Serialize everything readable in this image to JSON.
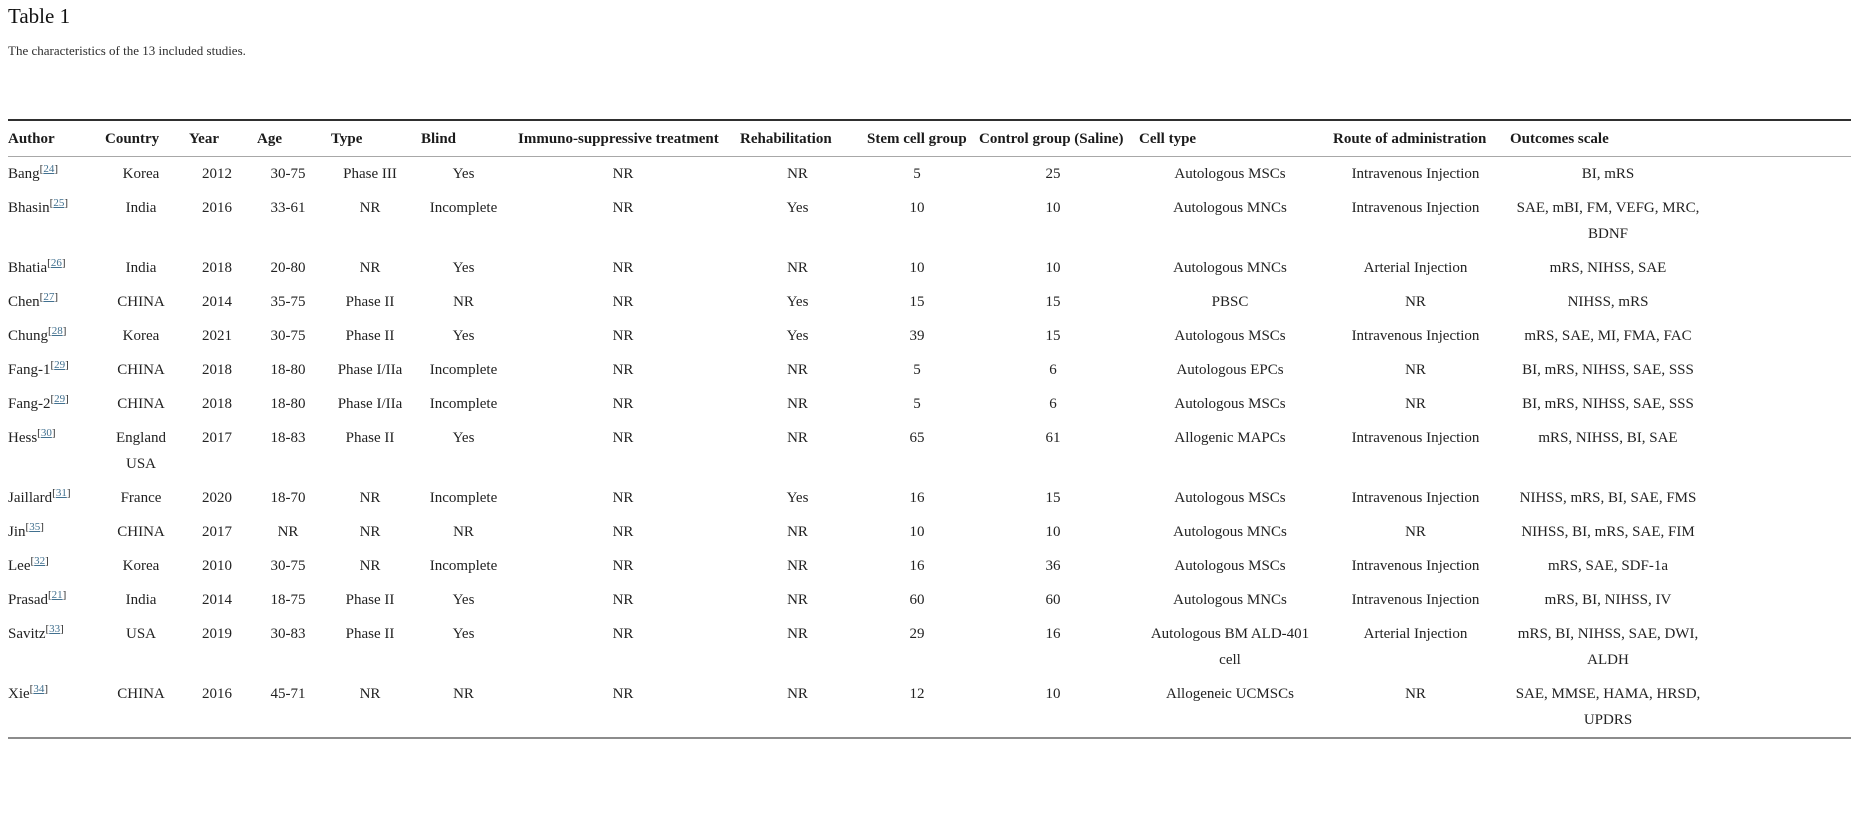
{
  "page": {
    "title": "Table 1",
    "caption": "The characteristics of the 13 included studies."
  },
  "table": {
    "columns": [
      {
        "key": "author",
        "label": "Author"
      },
      {
        "key": "country",
        "label": "Country"
      },
      {
        "key": "year",
        "label": "Year"
      },
      {
        "key": "age",
        "label": "Age"
      },
      {
        "key": "type",
        "label": "Type"
      },
      {
        "key": "blind",
        "label": "Blind"
      },
      {
        "key": "immuno",
        "label": "Immuno-suppressive treatment"
      },
      {
        "key": "rehab",
        "label": "Rehabilitation"
      },
      {
        "key": "stem",
        "label": "Stem cell group"
      },
      {
        "key": "control",
        "label": "Control group (Saline)"
      },
      {
        "key": "cell",
        "label": "Cell type"
      },
      {
        "key": "route",
        "label": "Route of administration"
      },
      {
        "key": "outcomes",
        "label": "Outcomes scale"
      }
    ],
    "rows": [
      {
        "author": "Bang",
        "ref": "24",
        "country": "Korea",
        "year": "2012",
        "age": "30-75",
        "type": "Phase III",
        "blind": "Yes",
        "immuno": "NR",
        "rehab": "NR",
        "stem": "5",
        "control": "25",
        "cell": "Autologous MSCs",
        "route": "Intravenous Injection",
        "outcomes": "BI, mRS"
      },
      {
        "author": "Bhasin",
        "ref": "25",
        "country": "India",
        "year": "2016",
        "age": "33-61",
        "type": "NR",
        "blind": "Incomplete",
        "immuno": "NR",
        "rehab": "Yes",
        "stem": "10",
        "control": "10",
        "cell": "Autologous MNCs",
        "route": "Intravenous Injection",
        "outcomes": "SAE, mBI, FM, VEFG, MRC, BDNF"
      },
      {
        "author": "Bhatia",
        "ref": "26",
        "country": "India",
        "year": "2018",
        "age": "20-80",
        "type": "NR",
        "blind": "Yes",
        "immuno": "NR",
        "rehab": "NR",
        "stem": "10",
        "control": "10",
        "cell": "Autologous MNCs",
        "route": "Arterial Injection",
        "outcomes": "mRS, NIHSS, SAE"
      },
      {
        "author": "Chen",
        "ref": "27",
        "country": "CHINA",
        "year": "2014",
        "age": "35-75",
        "type": "Phase II",
        "blind": "NR",
        "immuno": "NR",
        "rehab": "Yes",
        "stem": "15",
        "control": "15",
        "cell": "PBSC",
        "route": "NR",
        "outcomes": "NIHSS, mRS"
      },
      {
        "author": "Chung",
        "ref": "28",
        "country": "Korea",
        "year": "2021",
        "age": "30-75",
        "type": "Phase II",
        "blind": "Yes",
        "immuno": "NR",
        "rehab": "Yes",
        "stem": "39",
        "control": "15",
        "cell": "Autologous MSCs",
        "route": "Intravenous Injection",
        "outcomes": "mRS, SAE, MI, FMA, FAC"
      },
      {
        "author": "Fang-1",
        "ref": "29",
        "country": "CHINA",
        "year": "2018",
        "age": "18-80",
        "type": "Phase I/IIa",
        "blind": "Incomplete",
        "immuno": "NR",
        "rehab": "NR",
        "stem": "5",
        "control": "6",
        "cell": "Autologous EPCs",
        "route": "NR",
        "outcomes": "BI, mRS, NIHSS, SAE, SSS"
      },
      {
        "author": "Fang-2",
        "ref": "29",
        "country": "CHINA",
        "year": "2018",
        "age": "18-80",
        "type": "Phase I/IIa",
        "blind": "Incomplete",
        "immuno": "NR",
        "rehab": "NR",
        "stem": "5",
        "control": "6",
        "cell": "Autologous MSCs",
        "route": "NR",
        "outcomes": "BI, mRS, NIHSS, SAE, SSS"
      },
      {
        "author": "Hess",
        "ref": "30",
        "country": "England USA",
        "year": "2017",
        "age": "18-83",
        "type": "Phase II",
        "blind": "Yes",
        "immuno": "NR",
        "rehab": "NR",
        "stem": "65",
        "control": "61",
        "cell": "Allogenic MAPCs",
        "route": "Intravenous Injection",
        "outcomes": "mRS, NIHSS, BI, SAE"
      },
      {
        "author": "Jaillard",
        "ref": "31",
        "country": "France",
        "year": "2020",
        "age": "18-70",
        "type": "NR",
        "blind": "Incomplete",
        "immuno": "NR",
        "rehab": "Yes",
        "stem": "16",
        "control": "15",
        "cell": "Autologous MSCs",
        "route": "Intravenous Injection",
        "outcomes": "NIHSS, mRS, BI, SAE, FMS"
      },
      {
        "author": "Jin",
        "ref": "35",
        "country": "CHINA",
        "year": "2017",
        "age": "NR",
        "type": "NR",
        "blind": "NR",
        "immuno": "NR",
        "rehab": "NR",
        "stem": "10",
        "control": "10",
        "cell": "Autologous MNCs",
        "route": "NR",
        "outcomes": "NIHSS, BI, mRS, SAE, FIM"
      },
      {
        "author": "Lee",
        "ref": "32",
        "country": "Korea",
        "year": "2010",
        "age": "30-75",
        "type": "NR",
        "blind": "Incomplete",
        "immuno": "NR",
        "rehab": "NR",
        "stem": "16",
        "control": "36",
        "cell": "Autologous MSCs",
        "route": "Intravenous Injection",
        "outcomes": "mRS, SAE, SDF-1a"
      },
      {
        "author": "Prasad",
        "ref": "21",
        "country": "India",
        "year": "2014",
        "age": "18-75",
        "type": "Phase II",
        "blind": "Yes",
        "immuno": "NR",
        "rehab": "NR",
        "stem": "60",
        "control": "60",
        "cell": "Autologous MNCs",
        "route": "Intravenous Injection",
        "outcomes": "mRS, BI, NIHSS, IV"
      },
      {
        "author": "Savitz",
        "ref": "33",
        "country": "USA",
        "year": "2019",
        "age": "30-83",
        "type": "Phase II",
        "blind": "Yes",
        "immuno": "NR",
        "rehab": "NR",
        "stem": "29",
        "control": "16",
        "cell": "Autologous BM ALD-401 cell",
        "route": "Arterial Injection",
        "outcomes": "mRS, BI, NIHSS, SAE, DWI, ALDH"
      },
      {
        "author": "Xie",
        "ref": "34",
        "country": "CHINA",
        "year": "2016",
        "age": "45-71",
        "type": "NR",
        "blind": "NR",
        "immuno": "NR",
        "rehab": "NR",
        "stem": "12",
        "control": "10",
        "cell": "Allogeneic UCMSCs",
        "route": "NR",
        "outcomes": "SAE, MMSE, HAMA, HRSD, UPDRS"
      }
    ],
    "link_color": "#41708f"
  }
}
